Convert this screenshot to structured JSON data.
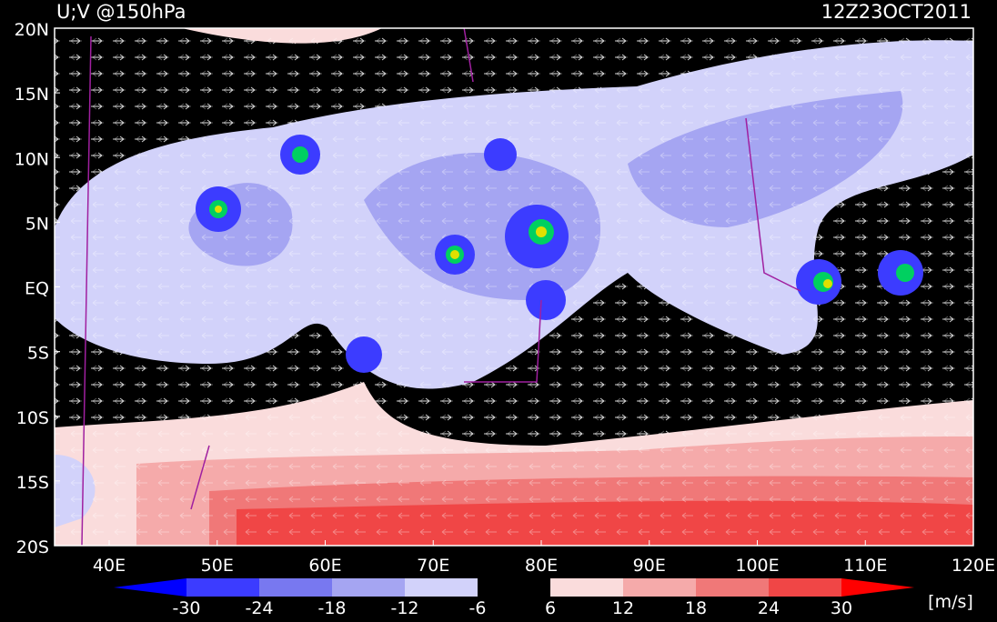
{
  "title": "U;V @150hPa",
  "time": "12Z23OCT2011",
  "lat_labels": [
    "20N",
    "15N",
    "10N",
    "5N",
    "EQ",
    "5S",
    "10S",
    "15S",
    "20S"
  ],
  "lon_labels": [
    "40E",
    "50E",
    "60E",
    "70E",
    "80E",
    "90E",
    "100E",
    "110E",
    "120E"
  ],
  "colorbar": {
    "labels": [
      "-30",
      "-24",
      "-18",
      "-12",
      "-6",
      "6",
      "12",
      "18",
      "24",
      "30"
    ],
    "colors": [
      "#0000ff",
      "#3c3cff",
      "#7878f0",
      "#a5a5f2",
      "#d2d2fa",
      "#000000",
      "#fadcdc",
      "#f5aaaa",
      "#f07878",
      "#f04646",
      "#ff0000"
    ],
    "unit": "[m/s]"
  }
}
